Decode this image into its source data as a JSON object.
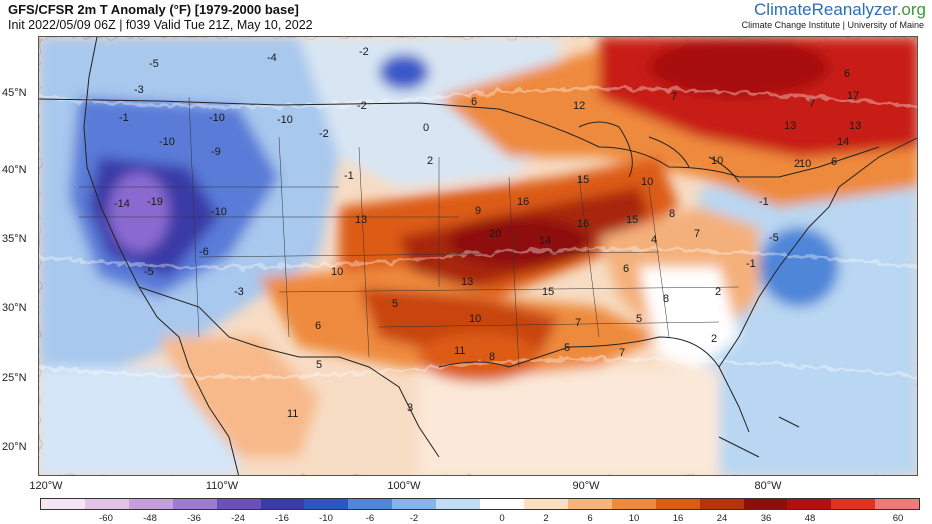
{
  "title": "GFS/CFSR 2m T Anomaly (°F) [1979-2000 base]",
  "subtitle": "Init 2022/05/09 06Z | f039 Valid Tue 21Z, May 10, 2022",
  "brand": {
    "name_main": "ClimateReanalyzer",
    "name_suffix": ".org",
    "affiliation": "Climate Change Institute | University of Maine"
  },
  "latitude_labels": [
    "45°N",
    "40°N",
    "35°N",
    "30°N",
    "25°N",
    "20°N"
  ],
  "longitude_labels": [
    "120°W",
    "110°W",
    "100°W",
    "90°W",
    "80°W"
  ],
  "colorbar": {
    "ticks": [
      "-60",
      "-48",
      "-36",
      "-24",
      "-16",
      "-10",
      "-6",
      "-2",
      "0",
      "2",
      "6",
      "10",
      "16",
      "24",
      "36",
      "48",
      "60"
    ],
    "colors": [
      "#f7e6f2",
      "#e3c3e6",
      "#c6a0dc",
      "#9c7bd0",
      "#6a50b8",
      "#3a3aa8",
      "#2d58c4",
      "#4f86d8",
      "#86b4ec",
      "#c2dcf6",
      "#ffffff",
      "#fde0c2",
      "#f9b47a",
      "#ee8a3c",
      "#dc5c12",
      "#b8320a",
      "#8e0e0a",
      "#b21010",
      "#e23222",
      "#f07a7a"
    ]
  },
  "map_values": [
    "-4",
    "-2",
    "-5",
    "-3",
    "-1",
    "-10",
    "-10",
    "-9",
    "-10",
    "-14",
    "-19",
    "-10",
    "-6",
    "-5",
    "-3",
    "-2",
    "-2",
    "0",
    "-1",
    "2",
    "6",
    "12",
    "7",
    "6",
    "7",
    "17",
    "13",
    "13",
    "10",
    "14",
    "10",
    "6",
    "2",
    "10",
    "15",
    "16",
    "9",
    "13",
    "20",
    "14",
    "16",
    "15",
    "8",
    "4",
    "7",
    "-1",
    "-1",
    "-5",
    "10",
    "13",
    "15",
    "6",
    "8",
    "2",
    "5",
    "10",
    "7",
    "5",
    "5",
    "11",
    "8",
    "7",
    "2",
    "6",
    "5",
    "11",
    "3"
  ]
}
